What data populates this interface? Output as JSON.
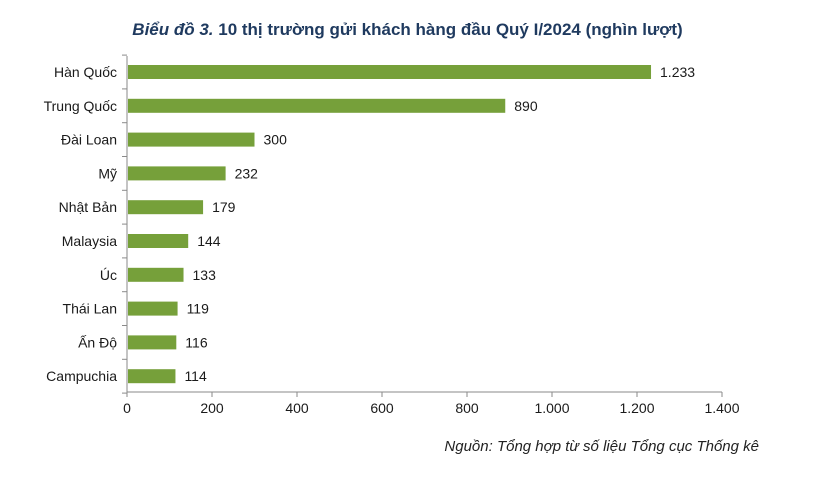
{
  "chart_data": {
    "type": "bar",
    "orientation": "horizontal",
    "title_lead": "Biểu đồ 3.",
    "title_rest": " 10 thị trường gửi khách hàng đầu Quý I/2024 (nghìn lượt)",
    "categories": [
      "Hàn Quốc",
      "Trung Quốc",
      "Đài Loan",
      "Mỹ",
      "Nhật Bản",
      "Malaysia",
      "Úc",
      "Thái Lan",
      "Ấn Độ",
      "Campuchia"
    ],
    "values": [
      1233,
      890,
      300,
      232,
      179,
      144,
      133,
      119,
      116,
      114
    ],
    "data_labels": [
      "1.233",
      "890",
      "300",
      "232",
      "179",
      "144",
      "133",
      "119",
      "116",
      "114"
    ],
    "xlim": [
      0,
      1400
    ],
    "x_ticks": [
      0,
      200,
      400,
      600,
      800,
      1000,
      1200,
      1400
    ],
    "x_tick_labels": [
      "0",
      "200",
      "400",
      "600",
      "800",
      "1.000",
      "1.200",
      "1.400"
    ],
    "grid": false,
    "bar_color": "#76a03a"
  },
  "source": "Nguồn: Tổng hợp từ số liệu Tổng cục Thống kê"
}
